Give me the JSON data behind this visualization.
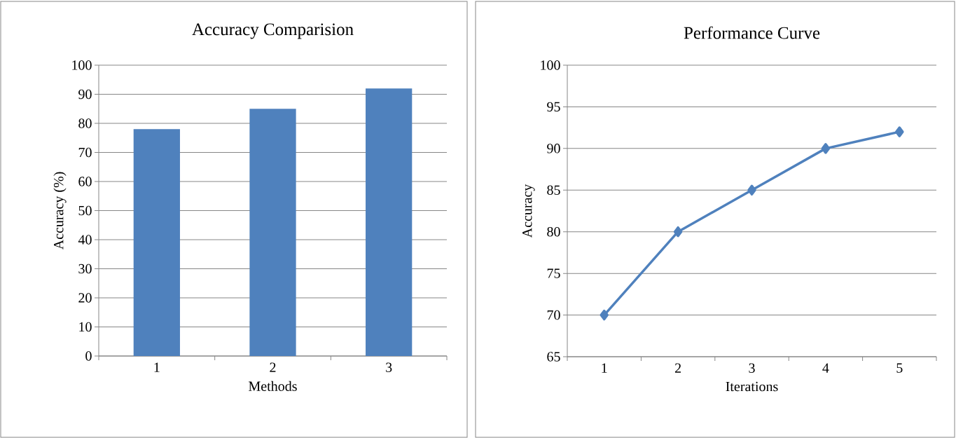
{
  "chart_data": [
    {
      "type": "bar",
      "title": "Accuracy Comparision",
      "xlabel": "Methods",
      "ylabel": "Accuracy (%)",
      "categories": [
        "1",
        "2",
        "3"
      ],
      "values": [
        78,
        85,
        92
      ],
      "color": "#4f81bd",
      "ylim": [
        0,
        100
      ],
      "yticks": [
        0,
        10,
        20,
        30,
        40,
        50,
        60,
        70,
        80,
        90,
        100
      ],
      "grid": "y"
    },
    {
      "type": "line",
      "title": "Performance Curve",
      "xlabel": "Iterations",
      "ylabel": "Accuracy",
      "categories": [
        "1",
        "2",
        "3",
        "4",
        "5"
      ],
      "values": [
        70,
        80,
        85,
        90,
        92
      ],
      "color": "#4f81bd",
      "marker": "diamond",
      "ylim": [
        65,
        100
      ],
      "yticks": [
        65,
        70,
        75,
        80,
        85,
        90,
        95,
        100
      ],
      "grid": "y"
    }
  ]
}
